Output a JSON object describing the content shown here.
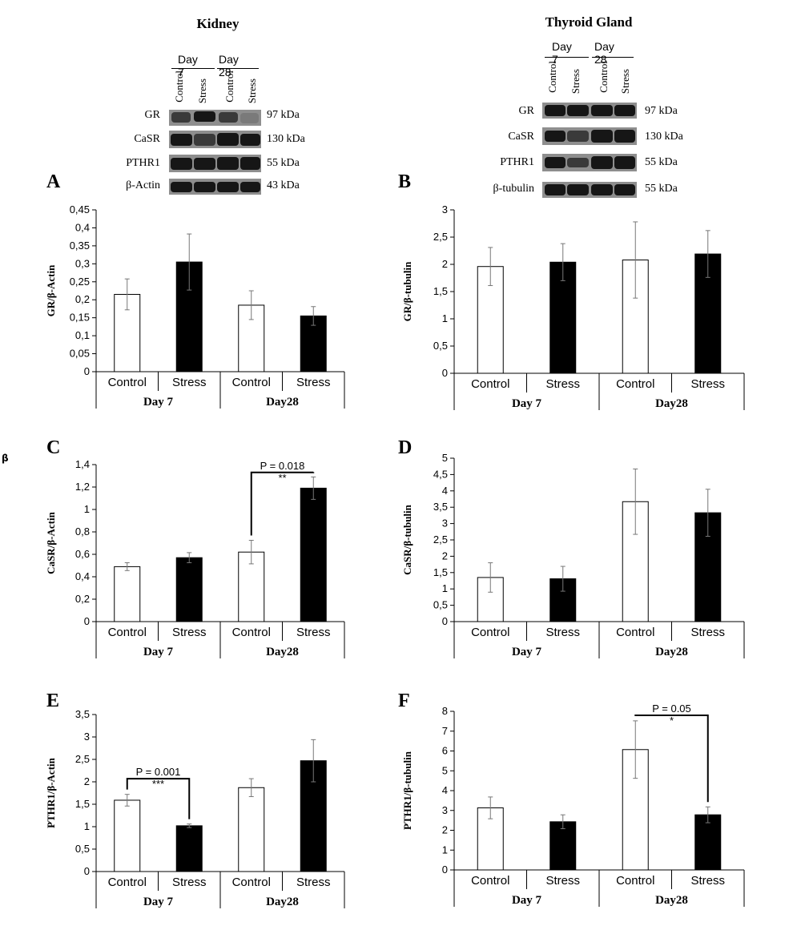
{
  "headers": {
    "kidney": "Kidney",
    "thyroid": "Thyroid Gland"
  },
  "stray_text": "β",
  "blots": {
    "kidney": {
      "days": [
        "Day 7",
        "Day 28"
      ],
      "lanes": [
        "Control",
        "Stress",
        "Control",
        "Stress"
      ],
      "rows": [
        {
          "label": "GR",
          "kda": "97 kDa"
        },
        {
          "label": "CaSR",
          "kda": "130 kDa"
        },
        {
          "label": "PTHR1",
          "kda": "55 kDa"
        },
        {
          "label": "β-Actin",
          "kda": "43 kDa"
        }
      ]
    },
    "thyroid": {
      "days": [
        "Day 7",
        "Day 28"
      ],
      "lanes": [
        "Control",
        "Stress",
        "Control",
        "Stress"
      ],
      "rows": [
        {
          "label": "GR",
          "kda": "97 kDa"
        },
        {
          "label": "CaSR",
          "kda": "130 kDa"
        },
        {
          "label": "PTHR1",
          "kda": "55 kDa"
        },
        {
          "label": "β-tubulin",
          "kda": "55 kDa"
        }
      ]
    }
  },
  "chart_data": [
    {
      "panel": "A",
      "type": "bar",
      "ylabel": "GR/β-Actin",
      "categories": [
        "Control",
        "Stress",
        "Control",
        "Stress"
      ],
      "groups": [
        "Day 7",
        "Day28"
      ],
      "values": [
        0.215,
        0.305,
        0.185,
        0.155
      ],
      "errors": [
        0.043,
        0.078,
        0.04,
        0.026
      ],
      "fills": [
        "#ffffff",
        "#000000",
        "#ffffff",
        "#000000"
      ],
      "ylim": [
        0,
        0.45
      ],
      "yticks": [
        "0",
        "0,05",
        "0,1",
        "0,15",
        "0,2",
        "0,25",
        "0,3",
        "0,35",
        "0,4",
        "0,45"
      ],
      "annotations": []
    },
    {
      "panel": "B",
      "type": "bar",
      "ylabel": "GR/β-tubulin",
      "categories": [
        "Control",
        "Stress",
        "Control",
        "Stress"
      ],
      "groups": [
        "Day 7",
        "Day28"
      ],
      "values": [
        1.96,
        2.04,
        2.08,
        2.19
      ],
      "errors": [
        0.35,
        0.34,
        0.7,
        0.43
      ],
      "fills": [
        "#ffffff",
        "#000000",
        "#ffffff",
        "#000000"
      ],
      "ylim": [
        0,
        3
      ],
      "yticks": [
        "0",
        "0,5",
        "1",
        "1,5",
        "2",
        "2,5",
        "3"
      ],
      "annotations": []
    },
    {
      "panel": "C",
      "type": "bar",
      "ylabel": "CaSR/β-Actin",
      "categories": [
        "Control",
        "Stress",
        "Control",
        "Stress"
      ],
      "groups": [
        "Day 7",
        "Day28"
      ],
      "values": [
        0.49,
        0.57,
        0.62,
        1.19
      ],
      "errors": [
        0.035,
        0.045,
        0.105,
        0.1
      ],
      "fills": [
        "#ffffff",
        "#000000",
        "#ffffff",
        "#000000"
      ],
      "ylim": [
        0,
        1.4
      ],
      "yticks": [
        "0",
        "0,2",
        "0,4",
        "0,6",
        "0,8",
        "1",
        "1,2",
        "1,4"
      ],
      "annotations": [
        {
          "from": 2,
          "to": 3,
          "y": 1.33,
          "p": "P = 0.018",
          "stars": "**"
        }
      ]
    },
    {
      "panel": "D",
      "type": "bar",
      "ylabel": "CaSR/β-tubulin",
      "categories": [
        "Control",
        "Stress",
        "Control",
        "Stress"
      ],
      "groups": [
        "Day 7",
        "Day28"
      ],
      "values": [
        1.35,
        1.31,
        3.67,
        3.33
      ],
      "errors": [
        0.45,
        0.38,
        1.0,
        0.72
      ],
      "fills": [
        "#ffffff",
        "#000000",
        "#ffffff",
        "#000000"
      ],
      "ylim": [
        0,
        5
      ],
      "yticks": [
        "0",
        "0,5",
        "1",
        "1,5",
        "2",
        "2,5",
        "3",
        "3,5",
        "4",
        "4,5",
        "5"
      ],
      "annotations": []
    },
    {
      "panel": "E",
      "type": "bar",
      "ylabel": "PTHR1/β-Actin",
      "categories": [
        "Control",
        "Stress",
        "Control",
        "Stress"
      ],
      "groups": [
        "Day 7",
        "Day28"
      ],
      "values": [
        1.59,
        1.02,
        1.87,
        2.47
      ],
      "errors": [
        0.13,
        0.04,
        0.2,
        0.47
      ],
      "fills": [
        "#ffffff",
        "#000000",
        "#ffffff",
        "#000000"
      ],
      "ylim": [
        0,
        3.5
      ],
      "yticks": [
        "0",
        "0,5",
        "1",
        "1,5",
        "2",
        "2,5",
        "3",
        "3,5"
      ],
      "annotations": [
        {
          "from": 0,
          "to": 1,
          "y": 2.07,
          "p": "P = 0.001",
          "stars": "***"
        }
      ]
    },
    {
      "panel": "F",
      "type": "bar",
      "ylabel": "PTHR1/β-tubulin",
      "categories": [
        "Control",
        "Stress",
        "Control",
        "Stress"
      ],
      "groups": [
        "Day 7",
        "Day28"
      ],
      "values": [
        3.13,
        2.43,
        6.07,
        2.78
      ],
      "errors": [
        0.55,
        0.35,
        1.45,
        0.4
      ],
      "fills": [
        "#ffffff",
        "#000000",
        "#ffffff",
        "#000000"
      ],
      "ylim": [
        0,
        8
      ],
      "yticks": [
        "0",
        "1",
        "2",
        "3",
        "4",
        "5",
        "6",
        "7",
        "8"
      ],
      "annotations": [
        {
          "from": 2,
          "to": 3,
          "y": 7.8,
          "p": "P = 0.05",
          "stars": "*"
        }
      ]
    }
  ]
}
